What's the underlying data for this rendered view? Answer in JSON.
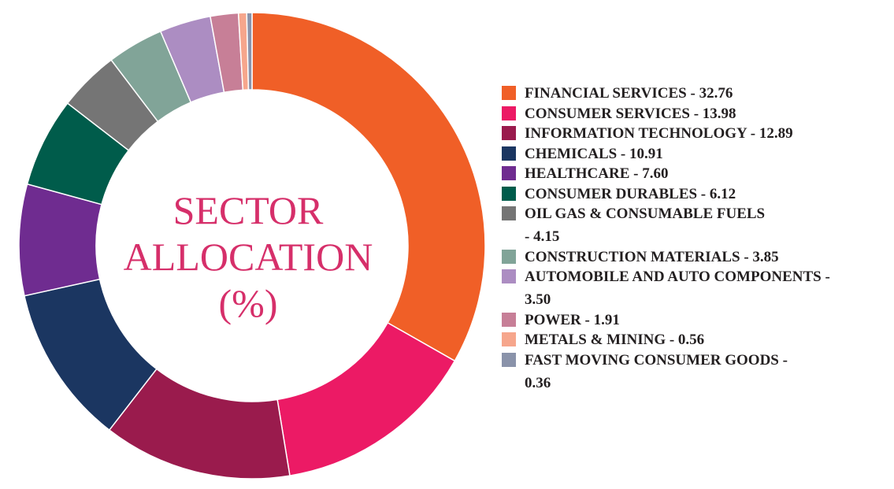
{
  "chart_data": {
    "type": "pie",
    "title_lines": [
      "SECTOR",
      "ALLOCATION",
      "(%)"
    ],
    "title_color": "#d62f6a",
    "legend_position": "right",
    "slices": [
      {
        "label": "FINANCIAL SERVICES",
        "value": 32.76,
        "legend_lines": [
          "FINANCIAL SERVICES - 32.76"
        ],
        "color": "#f05f27"
      },
      {
        "label": "CONSUMER SERVICES",
        "value": 13.98,
        "legend_lines": [
          "CONSUMER SERVICES - 13.98"
        ],
        "color": "#ec1a65"
      },
      {
        "label": "INFORMATION TECHNOLOGY",
        "value": 12.89,
        "legend_lines": [
          "INFORMATION TECHNOLOGY - 12.89"
        ],
        "color": "#9a1b4d"
      },
      {
        "label": "CHEMICALS",
        "value": 10.91,
        "legend_lines": [
          "CHEMICALS - 10.91"
        ],
        "color": "#1b3661"
      },
      {
        "label": "HEALTHCARE",
        "value": 7.6,
        "legend_lines": [
          "HEALTHCARE - 7.60"
        ],
        "color": "#6f2c90"
      },
      {
        "label": "CONSUMER DURABLES",
        "value": 6.12,
        "legend_lines": [
          "CONSUMER DURABLES - 6.12"
        ],
        "color": "#005c4b"
      },
      {
        "label": "OIL GAS & CONSUMABLE FUELS",
        "value": 4.15,
        "legend_lines": [
          "OIL GAS & CONSUMABLE FUELS",
          "- 4.15"
        ],
        "color": "#757575"
      },
      {
        "label": "CONSTRUCTION MATERIALS",
        "value": 3.85,
        "legend_lines": [
          "CONSTRUCTION MATERIALS - 3.85"
        ],
        "color": "#81a498"
      },
      {
        "label": "AUTOMOBILE AND AUTO COMPONENTS",
        "value": 3.5,
        "legend_lines": [
          "AUTOMOBILE AND AUTO COMPONENTS -",
          "3.50"
        ],
        "color": "#ac8dc2"
      },
      {
        "label": "POWER",
        "value": 1.91,
        "legend_lines": [
          "POWER - 1.91"
        ],
        "color": "#c77f97"
      },
      {
        "label": "METALS & MINING",
        "value": 0.56,
        "legend_lines": [
          "METALS & MINING - 0.56"
        ],
        "color": "#f6a68c"
      },
      {
        "label": "FAST MOVING CONSUMER GOODS",
        "value": 0.36,
        "legend_lines": [
          "FAST MOVING CONSUMER GOODS -",
          "0.36"
        ],
        "color": "#8a93aa"
      }
    ]
  }
}
